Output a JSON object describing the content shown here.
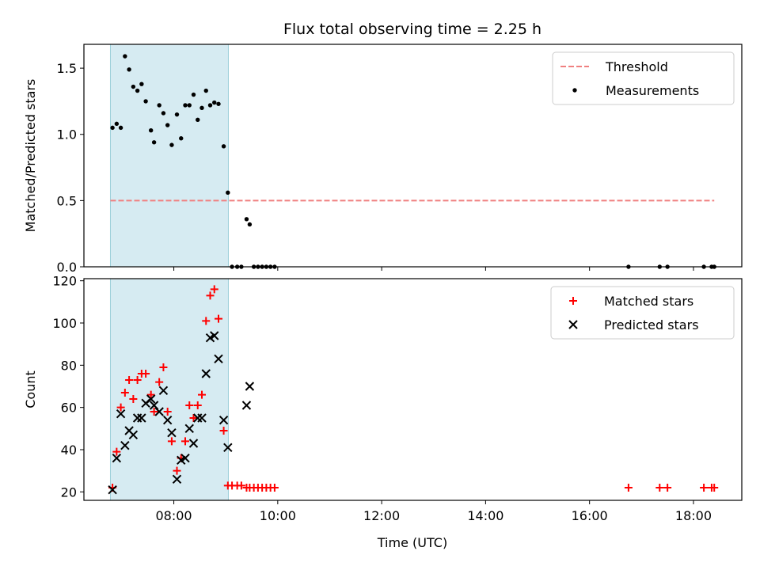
{
  "chart_data": {
    "type": "scatter",
    "title": "Flux total observing time = 2.25 h",
    "xlabel": "Time (UTC)",
    "x_unit": "hours UTC",
    "xlim": [
      6.27,
      18.93
    ],
    "xticks": [
      8,
      10,
      12,
      14,
      16,
      18
    ],
    "xtick_labels": [
      "08:00",
      "10:00",
      "12:00",
      "14:00",
      "16:00",
      "18:00"
    ],
    "observing_window": [
      6.78,
      9.05
    ],
    "panels": [
      {
        "ylabel": "Matched/Predicted stars",
        "ylim": [
          0,
          1.68
        ],
        "yticks": [
          0.0,
          0.5,
          1.0,
          1.5
        ],
        "ytick_labels": [
          "0.0",
          "0.5",
          "1.0",
          "1.5"
        ],
        "threshold": {
          "value": 0.5,
          "x_range": [
            6.78,
            18.4
          ],
          "color": "#f08080"
        },
        "legend": {
          "placement": "upper right",
          "entries": [
            "Threshold",
            "Measurements"
          ]
        },
        "series": [
          {
            "name": "Measurements",
            "marker": "dot",
            "color": "#000000",
            "x": [
              6.82,
              6.9,
              6.98,
              7.06,
              7.14,
              7.22,
              7.3,
              7.38,
              7.46,
              7.56,
              7.62,
              7.72,
              7.8,
              7.88,
              7.96,
              8.06,
              8.14,
              8.22,
              8.3,
              8.38,
              8.46,
              8.54,
              8.62,
              8.7,
              8.78,
              8.86,
              8.96,
              9.04,
              9.12,
              9.22,
              9.3,
              9.4,
              9.46,
              9.54,
              9.62,
              9.7,
              9.78,
              9.86,
              9.94,
              16.75,
              17.35,
              17.5,
              18.2,
              18.35,
              18.4
            ],
            "y": [
              1.05,
              1.08,
              1.05,
              1.59,
              1.49,
              1.36,
              1.33,
              1.38,
              1.25,
              1.03,
              0.94,
              1.22,
              1.16,
              1.07,
              0.92,
              1.15,
              0.97,
              1.22,
              1.22,
              1.3,
              1.11,
              1.2,
              1.33,
              1.22,
              1.24,
              1.23,
              0.91,
              0.56,
              0,
              0,
              0,
              0.36,
              0.32,
              0,
              0,
              0,
              0,
              0,
              0,
              0,
              0,
              0,
              0,
              0,
              0
            ]
          }
        ]
      },
      {
        "ylabel": "Count",
        "ylim": [
          16,
          121
        ],
        "yticks": [
          20,
          40,
          60,
          80,
          100,
          120
        ],
        "ytick_labels": [
          "20",
          "40",
          "60",
          "80",
          "100",
          "120"
        ],
        "legend": {
          "placement": "upper right",
          "entries": [
            "Matched stars",
            "Predicted stars"
          ]
        },
        "series": [
          {
            "name": "Matched stars",
            "marker": "plus",
            "color": "#ff0000",
            "x": [
              6.82,
              6.9,
              6.98,
              7.06,
              7.14,
              7.22,
              7.3,
              7.38,
              7.46,
              7.56,
              7.62,
              7.72,
              7.8,
              7.88,
              7.96,
              8.06,
              8.14,
              8.22,
              8.3,
              8.38,
              8.46,
              8.54,
              8.62,
              8.7,
              8.78,
              8.86,
              8.96,
              9.04,
              9.12,
              9.22,
              9.3,
              9.4,
              9.46,
              9.54,
              9.62,
              9.7,
              9.78,
              9.86,
              9.94,
              16.75,
              17.35,
              17.5,
              18.2,
              18.35,
              18.4
            ],
            "y": [
              22,
              39,
              60,
              67,
              73,
              64,
              73,
              76,
              76,
              66,
              58,
              72,
              79,
              58,
              44,
              30,
              36,
              44,
              61,
              55,
              61,
              66,
              101,
              113,
              116,
              102,
              49,
              23,
              23,
              23,
              23,
              22,
              22,
              22,
              22,
              22,
              22,
              22,
              22,
              22,
              22,
              22,
              22,
              22,
              22
            ]
          },
          {
            "name": "Predicted stars",
            "marker": "x",
            "color": "#000000",
            "x": [
              6.82,
              6.9,
              6.98,
              7.06,
              7.14,
              7.22,
              7.3,
              7.38,
              7.46,
              7.56,
              7.62,
              7.72,
              7.8,
              7.88,
              7.96,
              8.06,
              8.14,
              8.22,
              8.3,
              8.38,
              8.46,
              8.54,
              8.62,
              8.7,
              8.78,
              8.86,
              8.96,
              9.04,
              9.4,
              9.46
            ],
            "y": [
              21,
              36,
              57,
              42,
              49,
              47,
              55,
              55,
              62,
              64,
              61,
              58,
              68,
              54,
              48,
              26,
              35,
              36,
              50,
              43,
              55,
              55,
              76,
              93,
              94,
              83,
              54,
              41,
              61,
              70
            ]
          }
        ]
      }
    ]
  }
}
